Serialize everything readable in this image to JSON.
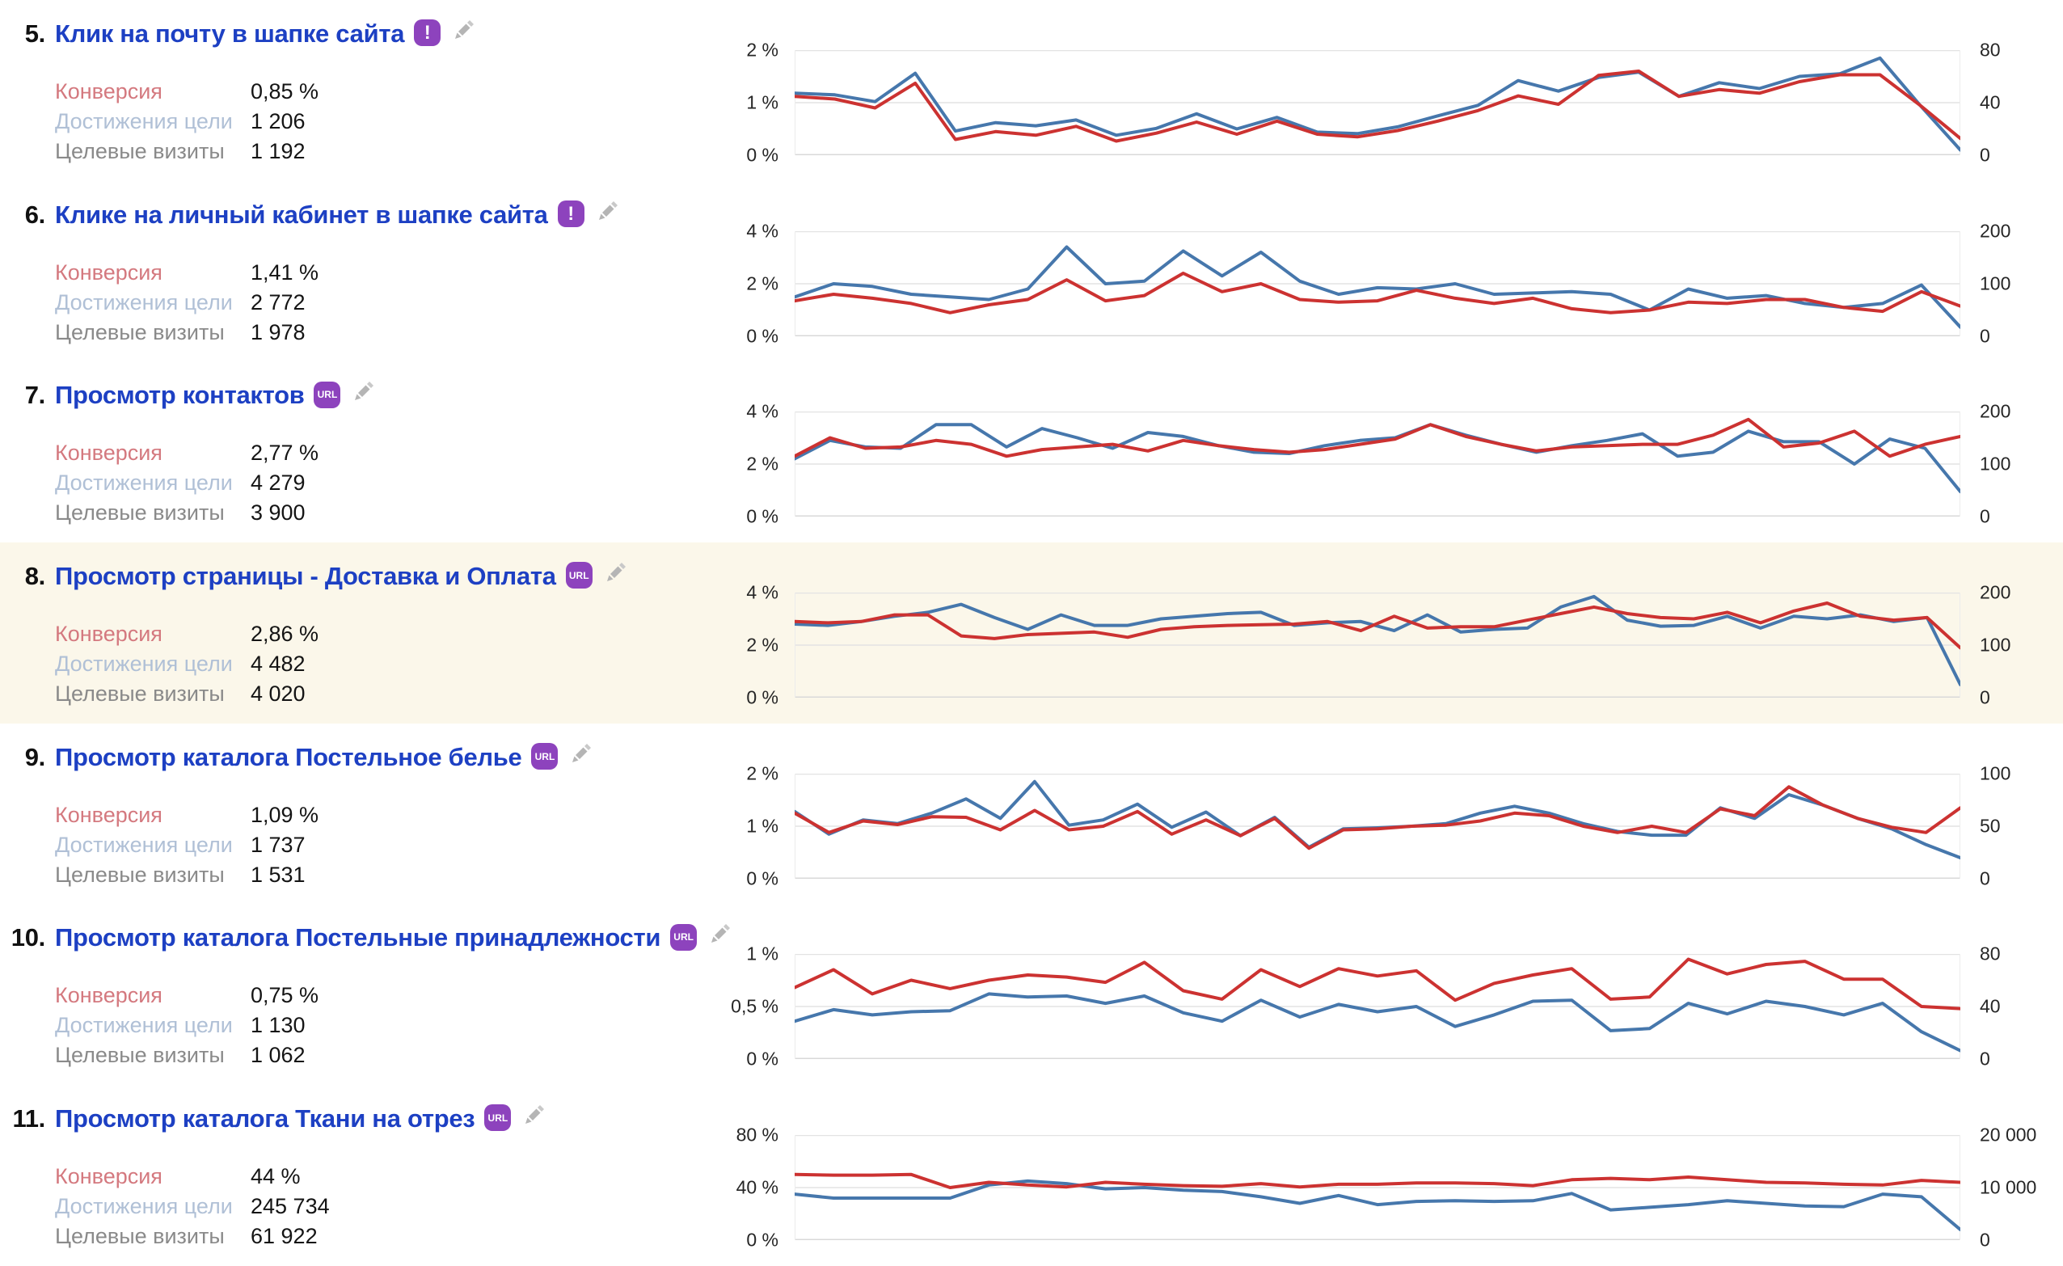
{
  "labels": {
    "conversion": "Конверсия",
    "goal_reaches": "Достижения цели",
    "goal_visits": "Целевые визиты"
  },
  "colors": {
    "line_blue": "#4677ac",
    "line_red": "#cc3231",
    "title_blue": "#1d40c3",
    "badge_purple": "#8d43bd",
    "highlight_bg": "#fbf7ea",
    "grid": "#e3e3e3"
  },
  "goals": [
    {
      "number": "5.",
      "title": "Клик на почту в шапке сайта",
      "badge": "!",
      "badge_type": "event",
      "highlighted": false,
      "conversion": "0,85 %",
      "reaches": "1 206",
      "visits": "1 192",
      "chart": {
        "type": "line",
        "y_ticks": [
          "2 %",
          "1 %",
          "0 %"
        ],
        "y2_ticks": [
          "80",
          "40",
          "0"
        ],
        "ymax": 2,
        "series": [
          {
            "name": "blue",
            "values": [
              1.18,
              1.15,
              1.02,
              1.56,
              0.46,
              0.62,
              0.56,
              0.67,
              0.38,
              0.51,
              0.79,
              0.5,
              0.72,
              0.44,
              0.41,
              0.54,
              0.75,
              0.95,
              1.42,
              1.22,
              1.48,
              1.58,
              1.12,
              1.38,
              1.27,
              1.5,
              1.55,
              1.85,
              0.95,
              0.1
            ]
          },
          {
            "name": "red",
            "values": [
              1.12,
              1.07,
              0.9,
              1.37,
              0.3,
              0.45,
              0.38,
              0.55,
              0.27,
              0.42,
              0.63,
              0.4,
              0.65,
              0.4,
              0.35,
              0.47,
              0.65,
              0.85,
              1.13,
              0.97,
              1.52,
              1.6,
              1.12,
              1.25,
              1.18,
              1.4,
              1.53,
              1.53,
              0.95,
              0.32
            ]
          }
        ]
      }
    },
    {
      "number": "6.",
      "title": "Клике на личный кабинет в шапке сайта",
      "badge": "!",
      "badge_type": "event",
      "highlighted": false,
      "conversion": "1,41 %",
      "reaches": "2 772",
      "visits": "1 978",
      "chart": {
        "type": "line",
        "y_ticks": [
          "4 %",
          "2 %",
          "0 %"
        ],
        "y2_ticks": [
          "200",
          "100",
          "0"
        ],
        "ymax": 4,
        "series": [
          {
            "name": "blue",
            "values": [
              1.5,
              2.0,
              1.9,
              1.6,
              1.5,
              1.4,
              1.8,
              3.4,
              2.0,
              2.1,
              3.25,
              2.3,
              3.2,
              2.1,
              1.6,
              1.85,
              1.8,
              2.0,
              1.6,
              1.65,
              1.7,
              1.6,
              1.0,
              1.8,
              1.45,
              1.55,
              1.25,
              1.1,
              1.25,
              1.95,
              0.35
            ]
          },
          {
            "name": "red",
            "values": [
              1.35,
              1.6,
              1.45,
              1.25,
              0.9,
              1.2,
              1.4,
              2.15,
              1.35,
              1.55,
              2.4,
              1.7,
              2.0,
              1.4,
              1.3,
              1.35,
              1.75,
              1.45,
              1.25,
              1.45,
              1.05,
              0.9,
              1.0,
              1.3,
              1.25,
              1.4,
              1.4,
              1.1,
              0.95,
              1.7,
              1.15
            ]
          }
        ]
      }
    },
    {
      "number": "7.",
      "title": "Просмотр контактов",
      "badge": "URL",
      "badge_type": "url",
      "highlighted": false,
      "conversion": "2,77 %",
      "reaches": "4 279",
      "visits": "3 900",
      "chart": {
        "type": "line",
        "y_ticks": [
          "4 %",
          "2 %",
          "0 %"
        ],
        "y2_ticks": [
          "200",
          "100",
          "0"
        ],
        "ymax": 4,
        "series": [
          {
            "name": "blue",
            "values": [
              2.2,
              2.9,
              2.65,
              2.6,
              3.5,
              3.5,
              2.65,
              3.35,
              3.0,
              2.6,
              3.2,
              3.05,
              2.7,
              2.45,
              2.4,
              2.7,
              2.9,
              3.0,
              3.5,
              3.1,
              2.75,
              2.45,
              2.7,
              2.9,
              3.15,
              2.3,
              2.45,
              3.25,
              2.85,
              2.85,
              2.0,
              2.95,
              2.6,
              0.95
            ]
          },
          {
            "name": "red",
            "values": [
              2.3,
              3.0,
              2.6,
              2.65,
              2.9,
              2.75,
              2.3,
              2.55,
              2.65,
              2.75,
              2.5,
              2.9,
              2.7,
              2.55,
              2.45,
              2.55,
              2.75,
              2.95,
              3.5,
              3.05,
              2.75,
              2.5,
              2.65,
              2.7,
              2.75,
              2.75,
              3.1,
              3.7,
              2.65,
              2.8,
              3.25,
              2.3,
              2.75,
              3.05
            ]
          }
        ]
      }
    },
    {
      "number": "8.",
      "title": "Просмотр страницы - Доставка и Оплата",
      "badge": "URL",
      "badge_type": "url",
      "highlighted": true,
      "conversion": "2,86 %",
      "reaches": "4 482",
      "visits": "4 020",
      "chart": {
        "type": "line",
        "y_ticks": [
          "4 %",
          "2 %",
          "0 %"
        ],
        "y2_ticks": [
          "200",
          "100",
          "0"
        ],
        "ymax": 4,
        "series": [
          {
            "name": "blue",
            "values": [
              2.8,
              2.75,
              2.9,
              3.1,
              3.25,
              3.55,
              3.05,
              2.6,
              3.15,
              2.75,
              2.75,
              3.0,
              3.1,
              3.2,
              3.25,
              2.75,
              2.85,
              2.9,
              2.55,
              3.15,
              2.5,
              2.6,
              2.65,
              3.45,
              3.85,
              2.95,
              2.72,
              2.75,
              3.1,
              2.65,
              3.1,
              3.0,
              3.15,
              2.9,
              3.05,
              0.5
            ]
          },
          {
            "name": "red",
            "values": [
              2.9,
              2.85,
              2.9,
              3.15,
              3.15,
              2.35,
              2.25,
              2.4,
              2.45,
              2.5,
              2.3,
              2.6,
              2.7,
              2.75,
              2.78,
              2.8,
              2.9,
              2.55,
              3.1,
              2.65,
              2.7,
              2.7,
              2.95,
              3.2,
              3.45,
              3.2,
              3.05,
              3.0,
              3.25,
              2.85,
              3.3,
              3.6,
              3.1,
              2.95,
              3.05,
              1.9
            ]
          }
        ]
      }
    },
    {
      "number": "9.",
      "title": "Просмотр каталога Постельное белье",
      "badge": "URL",
      "badge_type": "url",
      "highlighted": false,
      "conversion": "1,09 %",
      "reaches": "1 737",
      "visits": "1 531",
      "chart": {
        "type": "line",
        "y_ticks": [
          "2 %",
          "1 %",
          "0 %"
        ],
        "y2_ticks": [
          "100",
          "50",
          "0"
        ],
        "ymax": 2,
        "series": [
          {
            "name": "blue",
            "values": [
              1.28,
              0.85,
              1.12,
              1.05,
              1.25,
              1.52,
              1.15,
              1.85,
              1.02,
              1.12,
              1.42,
              0.98,
              1.27,
              0.82,
              1.17,
              0.6,
              0.95,
              0.97,
              1.0,
              1.05,
              1.25,
              1.38,
              1.25,
              1.05,
              0.9,
              0.83,
              0.83,
              1.35,
              1.15,
              1.6,
              1.4,
              1.15,
              0.95,
              0.65,
              0.4
            ]
          },
          {
            "name": "red",
            "values": [
              1.25,
              0.88,
              1.1,
              1.03,
              1.18,
              1.17,
              0.93,
              1.3,
              0.93,
              1.0,
              1.28,
              0.85,
              1.12,
              0.82,
              1.15,
              0.58,
              0.93,
              0.95,
              1.0,
              1.02,
              1.1,
              1.25,
              1.2,
              1.0,
              0.88,
              1.0,
              0.88,
              1.33,
              1.2,
              1.75,
              1.4,
              1.15,
              0.98,
              0.88,
              1.35
            ]
          }
        ]
      }
    },
    {
      "number": "10.",
      "title": "Просмотр каталога Постельные принадлежности",
      "badge": "URL",
      "badge_type": "url",
      "highlighted": false,
      "conversion": "0,75 %",
      "reaches": "1 130",
      "visits": "1 062",
      "chart": {
        "type": "line",
        "y_ticks": [
          "1 %",
          "0,5 %",
          "0 %"
        ],
        "y2_ticks": [
          "80",
          "40",
          "0"
        ],
        "ymax": 1,
        "series": [
          {
            "name": "blue",
            "values": [
              0.36,
              0.47,
              0.42,
              0.45,
              0.46,
              0.62,
              0.59,
              0.6,
              0.53,
              0.6,
              0.44,
              0.36,
              0.56,
              0.4,
              0.52,
              0.45,
              0.5,
              0.31,
              0.42,
              0.55,
              0.56,
              0.27,
              0.29,
              0.53,
              0.43,
              0.55,
              0.5,
              0.42,
              0.53,
              0.26,
              0.08
            ]
          },
          {
            "name": "red",
            "values": [
              0.68,
              0.85,
              0.62,
              0.75,
              0.67,
              0.75,
              0.8,
              0.78,
              0.73,
              0.92,
              0.65,
              0.57,
              0.85,
              0.69,
              0.86,
              0.79,
              0.84,
              0.56,
              0.72,
              0.8,
              0.86,
              0.57,
              0.59,
              0.95,
              0.81,
              0.9,
              0.93,
              0.76,
              0.76,
              0.5,
              0.48
            ]
          }
        ]
      }
    },
    {
      "number": "11.",
      "title": "Просмотр каталога Ткани на отрез",
      "badge": "URL",
      "badge_type": "url",
      "highlighted": false,
      "conversion": "44 %",
      "reaches": "245 734",
      "visits": "61 922",
      "chart": {
        "type": "line",
        "y_ticks": [
          "80 %",
          "40 %",
          "0 %"
        ],
        "y2_ticks": [
          "20 000",
          "10 000",
          "0"
        ],
        "ymax": 80,
        "series": [
          {
            "name": "blue",
            "values": [
              35,
              32,
              32,
              32,
              32,
              42,
              45,
              43,
              39,
              40,
              38,
              37,
              33,
              28,
              34,
              27,
              29.5,
              30,
              29.5,
              30,
              35.5,
              23,
              25,
              27,
              30,
              28,
              26,
              25.5,
              35,
              33,
              8
            ]
          },
          {
            "name": "red",
            "values": [
              50,
              49.5,
              49.5,
              50,
              40,
              44,
              42,
              40.5,
              44,
              42.5,
              41.5,
              41,
              43,
              40.5,
              42.5,
              42.5,
              43.5,
              43.5,
              43,
              41.5,
              46,
              47,
              46,
              48,
              46,
              44,
              43.5,
              42.5,
              42,
              45.5,
              44
            ]
          }
        ]
      }
    }
  ]
}
